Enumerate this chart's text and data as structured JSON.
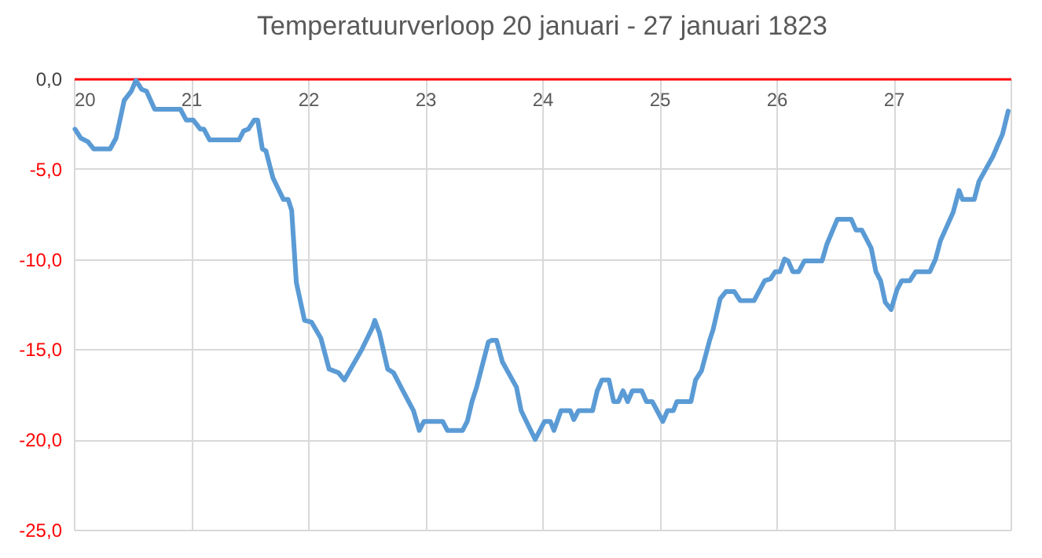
{
  "chart_data": {
    "type": "line",
    "title": "Temperatuurverloop 20 januari - 27 januari 1823",
    "xlim": [
      20,
      28
    ],
    "xticks": [
      20,
      21,
      22,
      23,
      24,
      25,
      26,
      27,
      {
        "value": 28,
        "label": null
      }
    ],
    "ylim": [
      -25,
      0
    ],
    "yticks": [
      {
        "value": -25,
        "label": "-25,0"
      },
      {
        "value": -20,
        "label": "-20,0"
      },
      {
        "value": -15,
        "label": "-15,0"
      },
      {
        "value": -10,
        "label": "-10,0"
      },
      {
        "value": -5,
        "label": "-5,0"
      },
      {
        "value": 0,
        "label": "0,0"
      }
    ],
    "grid": true,
    "line_style": "solid",
    "series": [
      {
        "color": "#5b9bd5",
        "x": [
          20.01,
          20.06,
          20.12,
          20.17,
          20.31,
          20.36,
          20.43,
          20.49,
          20.53,
          20.58,
          20.62,
          20.69,
          20.91,
          20.96,
          21.02,
          21.08,
          21.11,
          21.16,
          21.41,
          21.45,
          21.49,
          21.54,
          21.57,
          21.61,
          21.64,
          21.7,
          21.79,
          21.83,
          21.86,
          21.9,
          21.97,
          22.03,
          22.11,
          22.18,
          22.26,
          22.31,
          22.46,
          22.55,
          22.57,
          22.61,
          22.68,
          22.73,
          22.81,
          22.9,
          22.95,
          22.99,
          23.15,
          23.19,
          23.32,
          23.36,
          23.4,
          23.44,
          23.54,
          23.57,
          23.61,
          23.66,
          23.78,
          23.82,
          23.94,
          24.02,
          24.07,
          24.1,
          24.16,
          24.24,
          24.27,
          24.31,
          24.43,
          24.47,
          24.51,
          24.57,
          24.61,
          24.65,
          24.69,
          24.73,
          24.77,
          24.85,
          24.89,
          24.94,
          25.03,
          25.07,
          25.12,
          25.15,
          25.27,
          25.31,
          25.36,
          25.43,
          25.46,
          25.52,
          25.57,
          25.64,
          25.69,
          25.81,
          25.9,
          25.95,
          25.99,
          26.03,
          26.07,
          26.1,
          26.14,
          26.19,
          26.24,
          26.39,
          26.43,
          26.52,
          26.64,
          26.68,
          26.73,
          26.81,
          26.85,
          26.89,
          26.93,
          26.98,
          27.03,
          27.07,
          27.14,
          27.19,
          27.31,
          27.36,
          27.4,
          27.51,
          27.56,
          27.59,
          27.69,
          27.73,
          27.85,
          27.93,
          27.98
        ],
        "values": [
          -2.8,
          -3.3,
          -3.5,
          -3.9,
          -3.9,
          -3.3,
          -1.2,
          -0.7,
          -0.1,
          -0.6,
          -0.7,
          -1.7,
          -1.7,
          -2.3,
          -2.3,
          -2.8,
          -2.8,
          -3.4,
          -3.4,
          -2.9,
          -2.8,
          -2.3,
          -2.3,
          -3.9,
          -4.0,
          -5.5,
          -6.7,
          -6.7,
          -7.3,
          -11.3,
          -13.4,
          -13.5,
          -14.4,
          -16.1,
          -16.3,
          -16.7,
          -15.0,
          -13.8,
          -13.4,
          -14.1,
          -16.1,
          -16.3,
          -17.3,
          -18.4,
          -19.5,
          -19.0,
          -19.0,
          -19.5,
          -19.5,
          -19.0,
          -17.9,
          -17.1,
          -14.6,
          -14.5,
          -14.5,
          -15.7,
          -17.1,
          -18.4,
          -20.0,
          -19.0,
          -19.0,
          -19.5,
          -18.4,
          -18.4,
          -18.9,
          -18.4,
          -18.4,
          -17.3,
          -16.7,
          -16.7,
          -17.9,
          -17.9,
          -17.3,
          -17.9,
          -17.3,
          -17.3,
          -17.9,
          -17.9,
          -19.0,
          -18.4,
          -18.4,
          -17.9,
          -17.9,
          -16.7,
          -16.2,
          -14.5,
          -13.9,
          -12.2,
          -11.8,
          -11.8,
          -12.3,
          -12.3,
          -11.2,
          -11.1,
          -10.7,
          -10.7,
          -10.0,
          -10.1,
          -10.7,
          -10.7,
          -10.1,
          -10.1,
          -9.2,
          -7.8,
          -7.8,
          -8.4,
          -8.4,
          -9.4,
          -10.7,
          -11.2,
          -12.4,
          -12.8,
          -11.7,
          -11.2,
          -11.2,
          -10.7,
          -10.7,
          -10.0,
          -9.0,
          -7.4,
          -6.2,
          -6.7,
          -6.7,
          -5.7,
          -4.3,
          -3.1,
          -1.8
        ]
      }
    ]
  }
}
